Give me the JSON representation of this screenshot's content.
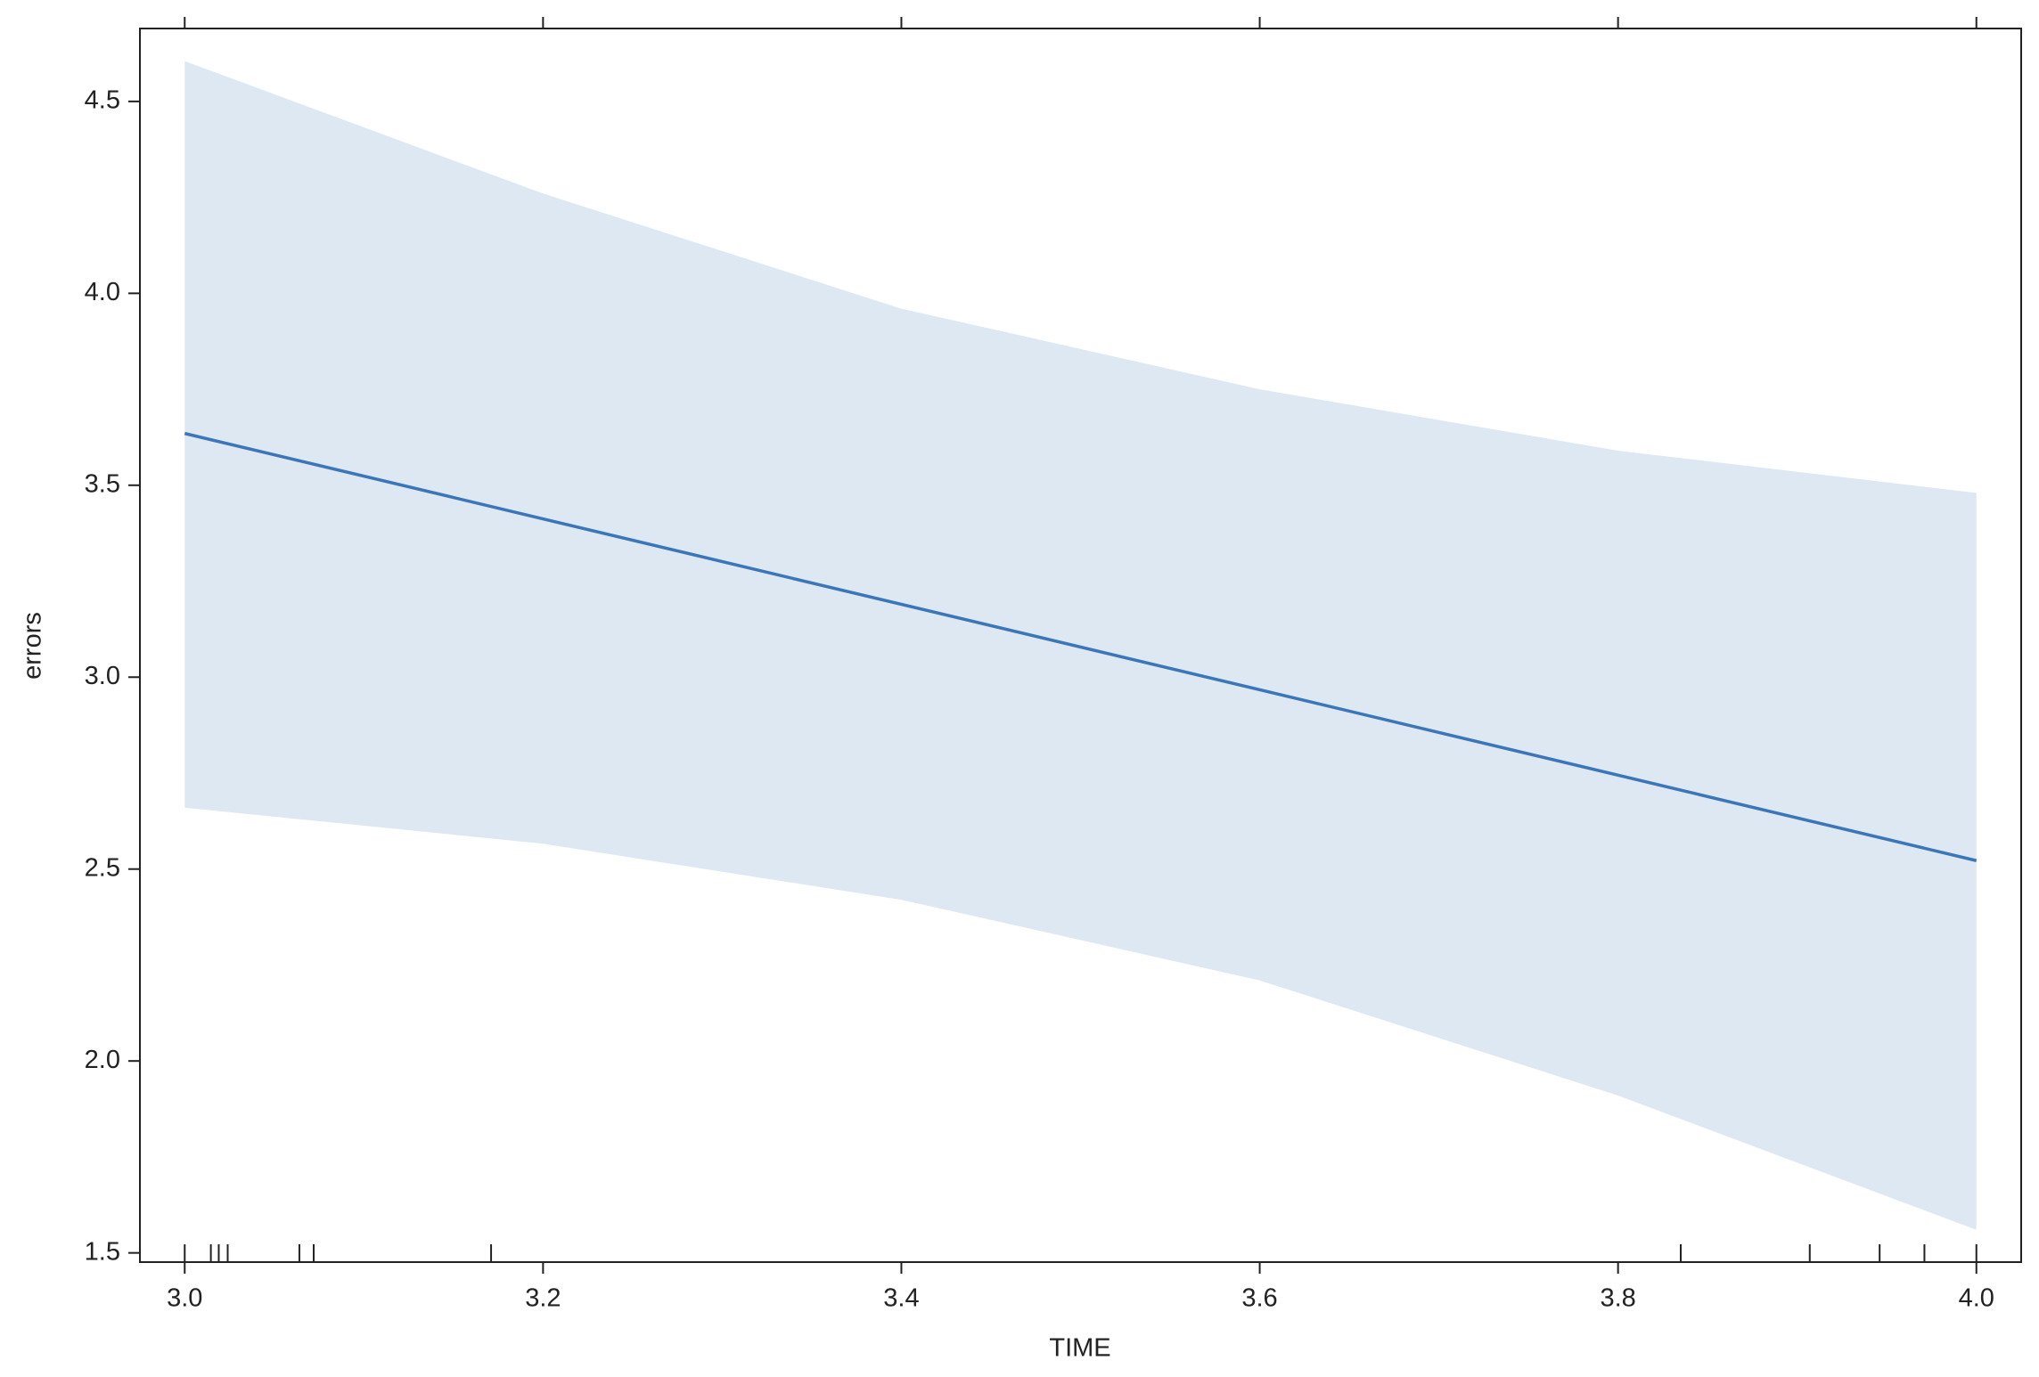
{
  "chart_data": {
    "type": "line",
    "x_label": "TIME",
    "y_label": "errors",
    "line": {
      "x": [
        3.0,
        4.0
      ],
      "values": [
        3.635,
        2.522
      ],
      "color": "#3a76b8"
    },
    "band": {
      "x": [
        3.0,
        3.2,
        3.4,
        3.6,
        3.8,
        4.0
      ],
      "upper": [
        4.605,
        4.26,
        3.96,
        3.75,
        3.59,
        3.48
      ],
      "lower": [
        2.66,
        2.566,
        2.42,
        2.21,
        1.91,
        1.56
      ],
      "color": "#dde8f3"
    },
    "rug": [
      3.0,
      3.0146,
      3.019,
      3.024,
      3.064,
      3.072,
      3.171,
      3.835,
      3.907,
      3.946,
      3.971,
      4.0
    ],
    "xlim": [
      2.975,
      4.025
    ],
    "ylim": [
      1.476,
      4.69
    ],
    "xticks": [
      {
        "value": 3.0,
        "label": "3.0"
      },
      3.2,
      3.4,
      3.6,
      3.8,
      {
        "value": 4.0,
        "label": "4.0"
      }
    ],
    "yticks": [
      1.5,
      {
        "value": 2.0,
        "label": "2.0"
      },
      2.5,
      {
        "value": 3.0,
        "label": "3.0"
      },
      3.5,
      {
        "value": 4.0,
        "label": "4.0"
      },
      4.5
    ]
  }
}
